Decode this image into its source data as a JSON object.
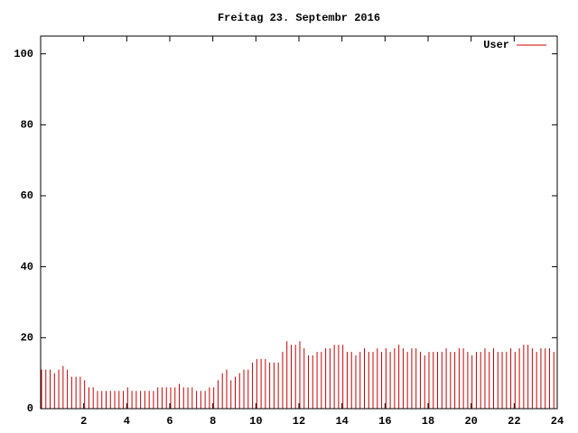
{
  "chart_data": {
    "type": "impulses",
    "title": "Freitag 23. Septembr 2016",
    "x": [
      0,
      0.2,
      0.4,
      0.6,
      0.8,
      1,
      1.2,
      1.4,
      1.6,
      1.8,
      2,
      2.2,
      2.4,
      2.6,
      2.8,
      3,
      3.2,
      3.4,
      3.6,
      3.8,
      4,
      4.2,
      4.4,
      4.6,
      4.8,
      5,
      5.2,
      5.4,
      5.6,
      5.8,
      6,
      6.2,
      6.4,
      6.6,
      6.8,
      7,
      7.2,
      7.4,
      7.6,
      7.8,
      8,
      8.2,
      8.4,
      8.6,
      8.8,
      9,
      9.2,
      9.4,
      9.6,
      9.8,
      10,
      10.2,
      10.4,
      10.6,
      10.8,
      11,
      11.2,
      11.4,
      11.6,
      11.8,
      12,
      12.2,
      12.4,
      12.6,
      12.8,
      13,
      13.2,
      13.4,
      13.6,
      13.8,
      14,
      14.2,
      14.4,
      14.6,
      14.8,
      15,
      15.2,
      15.4,
      15.6,
      15.8,
      16,
      16.2,
      16.4,
      16.6,
      16.8,
      17,
      17.2,
      17.4,
      17.6,
      17.8,
      18,
      18.2,
      18.4,
      18.6,
      18.8,
      19,
      19.2,
      19.4,
      19.6,
      19.8,
      20,
      20.2,
      20.4,
      20.6,
      20.8,
      21,
      21.2,
      21.4,
      21.6,
      21.8,
      22,
      22.2,
      22.4,
      22.6,
      22.8,
      23,
      23.2,
      23.4,
      23.6,
      23.8
    ],
    "series": [
      {
        "name": "User",
        "color": "#cc0000",
        "values": [
          11,
          11,
          11,
          10,
          11,
          12,
          11,
          9,
          9,
          9,
          8,
          6,
          6,
          5,
          5,
          5,
          5,
          5,
          5,
          5,
          6,
          5,
          5,
          5,
          5,
          5,
          5,
          6,
          6,
          6,
          6,
          6,
          7,
          6,
          6,
          6,
          5,
          5,
          5,
          6,
          6,
          8,
          10,
          11,
          8,
          9,
          10,
          11,
          11,
          13,
          14,
          14,
          14,
          13,
          13,
          13,
          16,
          19,
          18,
          18,
          19,
          17,
          15,
          15,
          16,
          16,
          17,
          17,
          18,
          18,
          18,
          16,
          16,
          15,
          16,
          17,
          16,
          16,
          17,
          16,
          17,
          16,
          17,
          18,
          17,
          16,
          17,
          17,
          16,
          15,
          16,
          16,
          16,
          16,
          17,
          16,
          16,
          17,
          17,
          16,
          15,
          16,
          16,
          17,
          16,
          17,
          16,
          16,
          16,
          17,
          16,
          17,
          18,
          18,
          17,
          16,
          17,
          17,
          17,
          16
        ]
      }
    ],
    "xlim": [
      0,
      24
    ],
    "xticks": [
      2,
      4,
      6,
      8,
      10,
      12,
      14,
      16,
      18,
      20,
      22,
      24
    ],
    "ylim": [
      0,
      105
    ],
    "yticks": [
      0,
      20,
      40,
      60,
      80,
      100
    ],
    "grid": false,
    "legend": "top-right"
  }
}
